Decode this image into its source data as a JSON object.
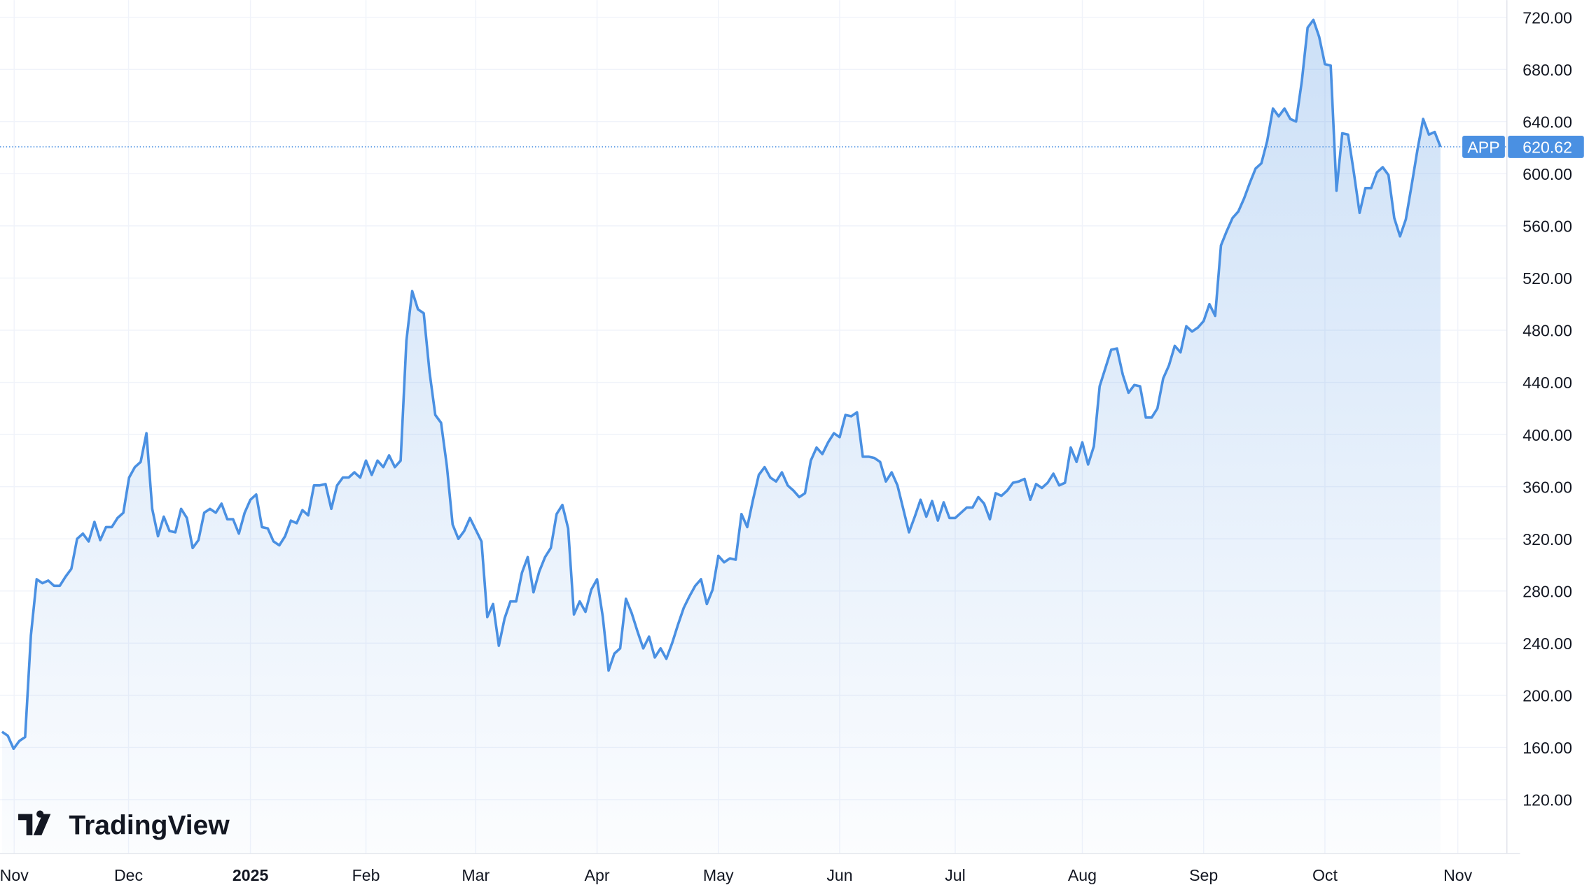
{
  "chart_data": {
    "type": "line",
    "logo": "TradingView",
    "series": [
      {
        "name": "APP",
        "color": "#4a90e2",
        "values": [
          172,
          169,
          159,
          165,
          168,
          246,
          289,
          286,
          288,
          284,
          284,
          291,
          297,
          320,
          324,
          318,
          333,
          319,
          329,
          329,
          336,
          340,
          367,
          375,
          379,
          401,
          343,
          322,
          337,
          326,
          325,
          343,
          336,
          313,
          319,
          340,
          343,
          340,
          347,
          335,
          335,
          324,
          340,
          350,
          354,
          329,
          328,
          318,
          315,
          322,
          334,
          332,
          342,
          338,
          361,
          361,
          362,
          343,
          361,
          367,
          367,
          371,
          367,
          380,
          369,
          380,
          375,
          384,
          375,
          380,
          472,
          510,
          496,
          493,
          448,
          415,
          409,
          376,
          331,
          320,
          326,
          336,
          327,
          318,
          260,
          270,
          238,
          259,
          272,
          272,
          294,
          306,
          279,
          295,
          306,
          313,
          339,
          346,
          328,
          262,
          272,
          264,
          281,
          289,
          260,
          219,
          232,
          236,
          274,
          263,
          249,
          236,
          245,
          229,
          236,
          228,
          240,
          254,
          267,
          276,
          284,
          289,
          270,
          281,
          307,
          302,
          305,
          304,
          339,
          329,
          350,
          369,
          375,
          367,
          364,
          371,
          361,
          357,
          352,
          355,
          380,
          390,
          385,
          394,
          401,
          398,
          415,
          414,
          417,
          383,
          383,
          382,
          379,
          364,
          371,
          361,
          343,
          325,
          337,
          350,
          337,
          349,
          334,
          348,
          336,
          336,
          340,
          344,
          344,
          352,
          347,
          335,
          355,
          353,
          357,
          363,
          364,
          366,
          350,
          362,
          359,
          363,
          370,
          361,
          363,
          390,
          379,
          394,
          377,
          391,
          437,
          451,
          465,
          466,
          446,
          432,
          438,
          437,
          413,
          413,
          420,
          443,
          453,
          468,
          463,
          483,
          479,
          482,
          487,
          500,
          491,
          545,
          556,
          566,
          571,
          581,
          593,
          604,
          608,
          625,
          650,
          644,
          650,
          642,
          640,
          671,
          712,
          718,
          705,
          684,
          683,
          587,
          631,
          630,
          601,
          570,
          589,
          589,
          601,
          605,
          599,
          566,
          552,
          565,
          591,
          618,
          642,
          630,
          632,
          620.62
        ]
      }
    ],
    "xlim": [
      -0.35,
      260.5
    ],
    "xticks": [
      {
        "value": 2.1,
        "label": "Nov"
      },
      {
        "value": 21.9,
        "label": "Dec"
      },
      {
        "value": 43,
        "label": "2025"
      },
      {
        "value": 63,
        "label": "Feb"
      },
      {
        "value": 82,
        "label": "Mar"
      },
      {
        "value": 103,
        "label": "Apr"
      },
      {
        "value": 124,
        "label": "May"
      },
      {
        "value": 145,
        "label": "Jun"
      },
      {
        "value": 165,
        "label": "Jul"
      },
      {
        "value": 187,
        "label": "Aug"
      },
      {
        "value": 208,
        "label": "Sep"
      },
      {
        "value": 229,
        "label": "Oct"
      },
      {
        "value": 252,
        "label": "Nov"
      }
    ],
    "ylim": [
      78.7,
      733.2
    ],
    "yticks": [
      {
        "value": 120,
        "label": "120.00"
      },
      {
        "value": 160,
        "label": "160.00"
      },
      {
        "value": 200,
        "label": "200.00"
      },
      {
        "value": 240,
        "label": "240.00"
      },
      {
        "value": 280,
        "label": "280.00"
      },
      {
        "value": 320,
        "label": "320.00"
      },
      {
        "value": 360,
        "label": "360.00"
      },
      {
        "value": 400,
        "label": "400.00"
      },
      {
        "value": 440,
        "label": "440.00"
      },
      {
        "value": 480,
        "label": "480.00"
      },
      {
        "value": 520,
        "label": "520.00"
      },
      {
        "value": 560,
        "label": "560.00"
      },
      {
        "value": 600,
        "label": "600.00"
      },
      {
        "value": 640,
        "label": "640.00"
      },
      {
        "value": 680,
        "label": "680.00"
      },
      {
        "value": 720,
        "label": "720.00"
      }
    ],
    "grid": true
  }
}
